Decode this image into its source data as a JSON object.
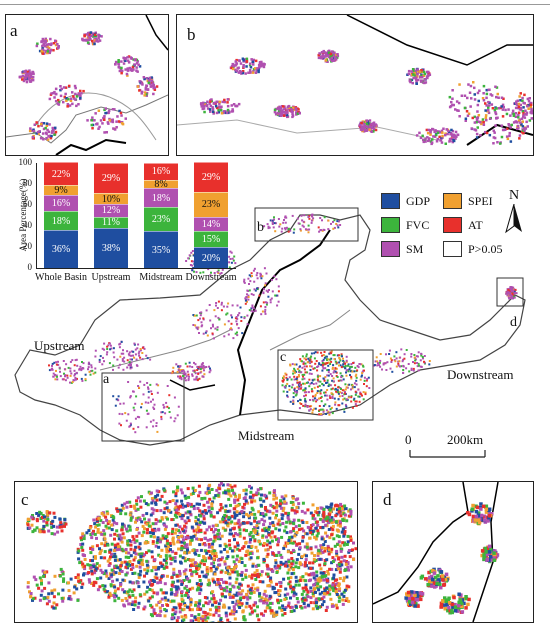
{
  "panels": {
    "a": "a",
    "b": "b",
    "c": "c",
    "d": "d"
  },
  "regions": {
    "upstream": "Upstream",
    "midstream": "Midstream",
    "downstream": "Downstream"
  },
  "legend": [
    {
      "label": "GDP",
      "color": "#1f4ea0"
    },
    {
      "label": "SPEI",
      "color": "#f0a030"
    },
    {
      "label": "FVC",
      "color": "#3cb43c"
    },
    {
      "label": "AT",
      "color": "#e8302c"
    },
    {
      "label": "SM",
      "color": "#b050b0"
    },
    {
      "label": "P>0.05",
      "color": "#ffffff"
    }
  ],
  "north_arrow": "N",
  "scale_bar": {
    "start": "0",
    "end": "200",
    "unit": "km"
  },
  "chart_data": {
    "type": "bar",
    "stacked": true,
    "ylabel": "Area Percentage(%)",
    "ylim": [
      0,
      100
    ],
    "yticks": [
      "0",
      "20",
      "40",
      "60",
      "80",
      "100"
    ],
    "categories": [
      "Whole Basin",
      "Upstream",
      "Midstream",
      "Downstream"
    ],
    "series": [
      {
        "name": "GDP",
        "color": "#1f4ea0",
        "values": [
          36,
          38,
          35,
          20
        ],
        "labels": [
          "36%",
          "38%",
          "35%",
          "20%"
        ]
      },
      {
        "name": "FVC",
        "color": "#3cb43c",
        "values": [
          18,
          11,
          23,
          15
        ],
        "labels": [
          "18%",
          "11%",
          "23%",
          "15%"
        ]
      },
      {
        "name": "SM",
        "color": "#b050b0",
        "values": [
          16,
          12,
          18,
          14
        ],
        "labels": [
          "16%",
          "12%",
          "18%",
          "14%"
        ]
      },
      {
        "name": "SPEI",
        "color": "#f0a030",
        "values": [
          9,
          10,
          8,
          23
        ],
        "labels": [
          "9%",
          "10%",
          "8%",
          "23%"
        ]
      },
      {
        "name": "AT",
        "color": "#e8302c",
        "values": [
          22,
          29,
          16,
          29
        ],
        "labels": [
          "22%",
          "29%",
          "16%",
          "29%"
        ]
      }
    ]
  }
}
